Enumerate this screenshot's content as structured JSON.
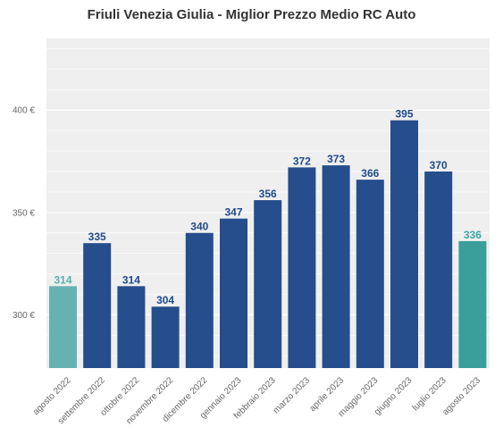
{
  "chart_data": {
    "type": "bar",
    "title": "Friuli Venezia Giulia - Miglior Prezzo Medio RC Auto",
    "xlabel": "",
    "ylabel": "",
    "categories": [
      "agosto 2022",
      "settembre 2022",
      "ottobre 2022",
      "novembre 2022",
      "dicembre 2022",
      "gennaio 2023",
      "febbraio 2023",
      "marzo 2023",
      "aprile 2023",
      "maggio 2023",
      "giugno 2023",
      "luglio 2023",
      "agosto 2023"
    ],
    "values": [
      314,
      335,
      314,
      304,
      340,
      347,
      356,
      372,
      373,
      366,
      395,
      370,
      336
    ],
    "value_labels": [
      "314",
      "335",
      "314",
      "304",
      "340",
      "347",
      "356",
      "372",
      "373",
      "366",
      "395",
      "370",
      "336"
    ],
    "yticks": [
      300,
      350,
      400
    ],
    "ytick_labels": [
      "300 €",
      "350 €",
      "400 €"
    ],
    "ylim": [
      274,
      435
    ],
    "grid": true,
    "colors": {
      "default_bar": "#264d8c",
      "first_bar": "#66b2b2",
      "last_bar": "#3a9e9a",
      "default_label": "#1f4a8a",
      "first_label": "#5ab0b0",
      "last_label": "#3aa8a4",
      "plot_background": "#efefef",
      "grid": "#ffffff"
    }
  }
}
